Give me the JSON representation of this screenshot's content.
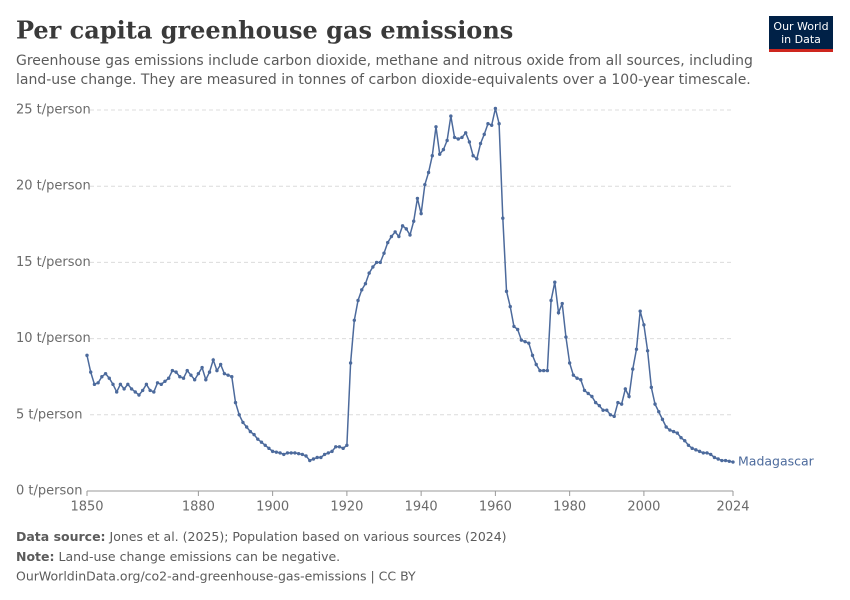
{
  "chart_data": {
    "type": "line",
    "title": "Per capita greenhouse gas emissions",
    "subtitle": [
      "Greenhouse gas emissions include carbon dioxide, methane and nitrous oxide from all sources, including",
      "land-use change. They are measured in tonnes of carbon dioxide-equivalents over a 100-year timescale."
    ],
    "logo": [
      "Our World",
      "in Data"
    ],
    "footer": {
      "source_label": "Data source:",
      "source": "Jones et al. (2025); Population based on various sources (2024)",
      "note_label": "Note:",
      "note": "Land-use change emissions can be negative.",
      "url": "OurWorldinData.org/co2-and-greenhouse-gas-emissions | CC BY"
    },
    "x": [
      1850,
      1851,
      1852,
      1853,
      1854,
      1855,
      1856,
      1857,
      1858,
      1859,
      1860,
      1861,
      1862,
      1863,
      1864,
      1865,
      1866,
      1867,
      1868,
      1869,
      1870,
      1871,
      1872,
      1873,
      1874,
      1875,
      1876,
      1877,
      1878,
      1879,
      1880,
      1881,
      1882,
      1883,
      1884,
      1885,
      1886,
      1887,
      1888,
      1889,
      1890,
      1891,
      1892,
      1893,
      1894,
      1895,
      1896,
      1897,
      1898,
      1899,
      1900,
      1901,
      1902,
      1903,
      1904,
      1905,
      1906,
      1907,
      1908,
      1909,
      1910,
      1911,
      1912,
      1913,
      1914,
      1915,
      1916,
      1917,
      1918,
      1919,
      1920,
      1921,
      1922,
      1923,
      1924,
      1925,
      1926,
      1927,
      1928,
      1929,
      1930,
      1931,
      1932,
      1933,
      1934,
      1935,
      1936,
      1937,
      1938,
      1939,
      1940,
      1941,
      1942,
      1943,
      1944,
      1945,
      1946,
      1947,
      1948,
      1949,
      1950,
      1951,
      1952,
      1953,
      1954,
      1955,
      1956,
      1957,
      1958,
      1959,
      1960,
      1961,
      1962,
      1963,
      1964,
      1965,
      1966,
      1967,
      1968,
      1969,
      1970,
      1971,
      1972,
      1973,
      1974,
      1975,
      1976,
      1977,
      1978,
      1979,
      1980,
      1981,
      1982,
      1983,
      1984,
      1985,
      1986,
      1987,
      1988,
      1989,
      1990,
      1991,
      1992,
      1993,
      1994,
      1995,
      1996,
      1997,
      1998,
      1999,
      2000,
      2001,
      2002,
      2003,
      2004,
      2005,
      2006,
      2007,
      2008,
      2009,
      2010,
      2011,
      2012,
      2013,
      2014,
      2015,
      2016,
      2017,
      2018,
      2019,
      2020,
      2021,
      2022,
      2023,
      2024
    ],
    "series": [
      {
        "name": "Madagascar",
        "color": "#4c6a9c",
        "values": [
          8.9,
          7.8,
          7.0,
          7.1,
          7.5,
          7.7,
          7.4,
          7.0,
          6.5,
          7.0,
          6.7,
          7.0,
          6.7,
          6.5,
          6.3,
          6.6,
          7.0,
          6.6,
          6.5,
          7.1,
          7.0,
          7.2,
          7.4,
          7.9,
          7.8,
          7.5,
          7.4,
          7.9,
          7.6,
          7.3,
          7.7,
          8.1,
          7.3,
          7.8,
          8.6,
          7.9,
          8.3,
          7.7,
          7.6,
          7.5,
          5.8,
          5.0,
          4.5,
          4.2,
          3.9,
          3.7,
          3.4,
          3.2,
          3.0,
          2.8,
          2.6,
          2.55,
          2.5,
          2.4,
          2.5,
          2.5,
          2.5,
          2.45,
          2.4,
          2.3,
          2.0,
          2.1,
          2.2,
          2.2,
          2.4,
          2.5,
          2.6,
          2.9,
          2.9,
          2.8,
          3.0,
          8.4,
          11.2,
          12.5,
          13.2,
          13.6,
          14.3,
          14.7,
          15.0,
          15.0,
          15.6,
          16.3,
          16.7,
          17.0,
          16.7,
          17.4,
          17.2,
          16.8,
          17.7,
          19.2,
          18.2,
          20.1,
          20.9,
          22.0,
          23.9,
          22.1,
          22.4,
          23.0,
          24.6,
          23.2,
          23.1,
          23.2,
          23.5,
          22.9,
          22.0,
          21.8,
          22.8,
          23.4,
          24.1,
          24.0,
          25.1,
          24.1,
          17.9,
          13.1,
          12.1,
          10.8,
          10.6,
          9.9,
          9.8,
          9.7,
          8.9,
          8.3,
          7.9,
          7.9,
          7.9,
          12.5,
          13.7,
          11.7,
          12.3,
          10.1,
          8.4,
          7.6,
          7.4,
          7.3,
          6.6,
          6.4,
          6.2,
          5.8,
          5.6,
          5.3,
          5.3,
          5.0,
          4.9,
          5.8,
          5.7,
          6.7,
          6.2,
          8.0,
          9.3,
          11.8,
          10.9,
          9.2,
          6.8,
          5.7,
          5.2,
          4.7,
          4.2,
          4.0,
          3.9,
          3.8,
          3.5,
          3.3,
          3.0,
          2.8,
          2.7,
          2.6,
          2.5,
          2.5,
          2.4,
          2.2,
          2.1,
          2.0,
          2.0,
          1.95,
          1.9
        ]
      }
    ],
    "xlim": [
      1850,
      2024
    ],
    "xticks": [
      1850,
      1880,
      1900,
      1920,
      1940,
      1960,
      1980,
      2000,
      2024
    ],
    "ylim": [
      0,
      25
    ],
    "yticks": [
      {
        "value": 0,
        "label": "0 t/person"
      },
      {
        "value": 5,
        "label": "5 t/person"
      },
      {
        "value": 10,
        "label": "10 t/person"
      },
      {
        "value": 15,
        "label": "15 t/person"
      },
      {
        "value": 20,
        "label": "20 t/person"
      },
      {
        "value": 25,
        "label": "25 t/person"
      }
    ],
    "grid": true
  }
}
